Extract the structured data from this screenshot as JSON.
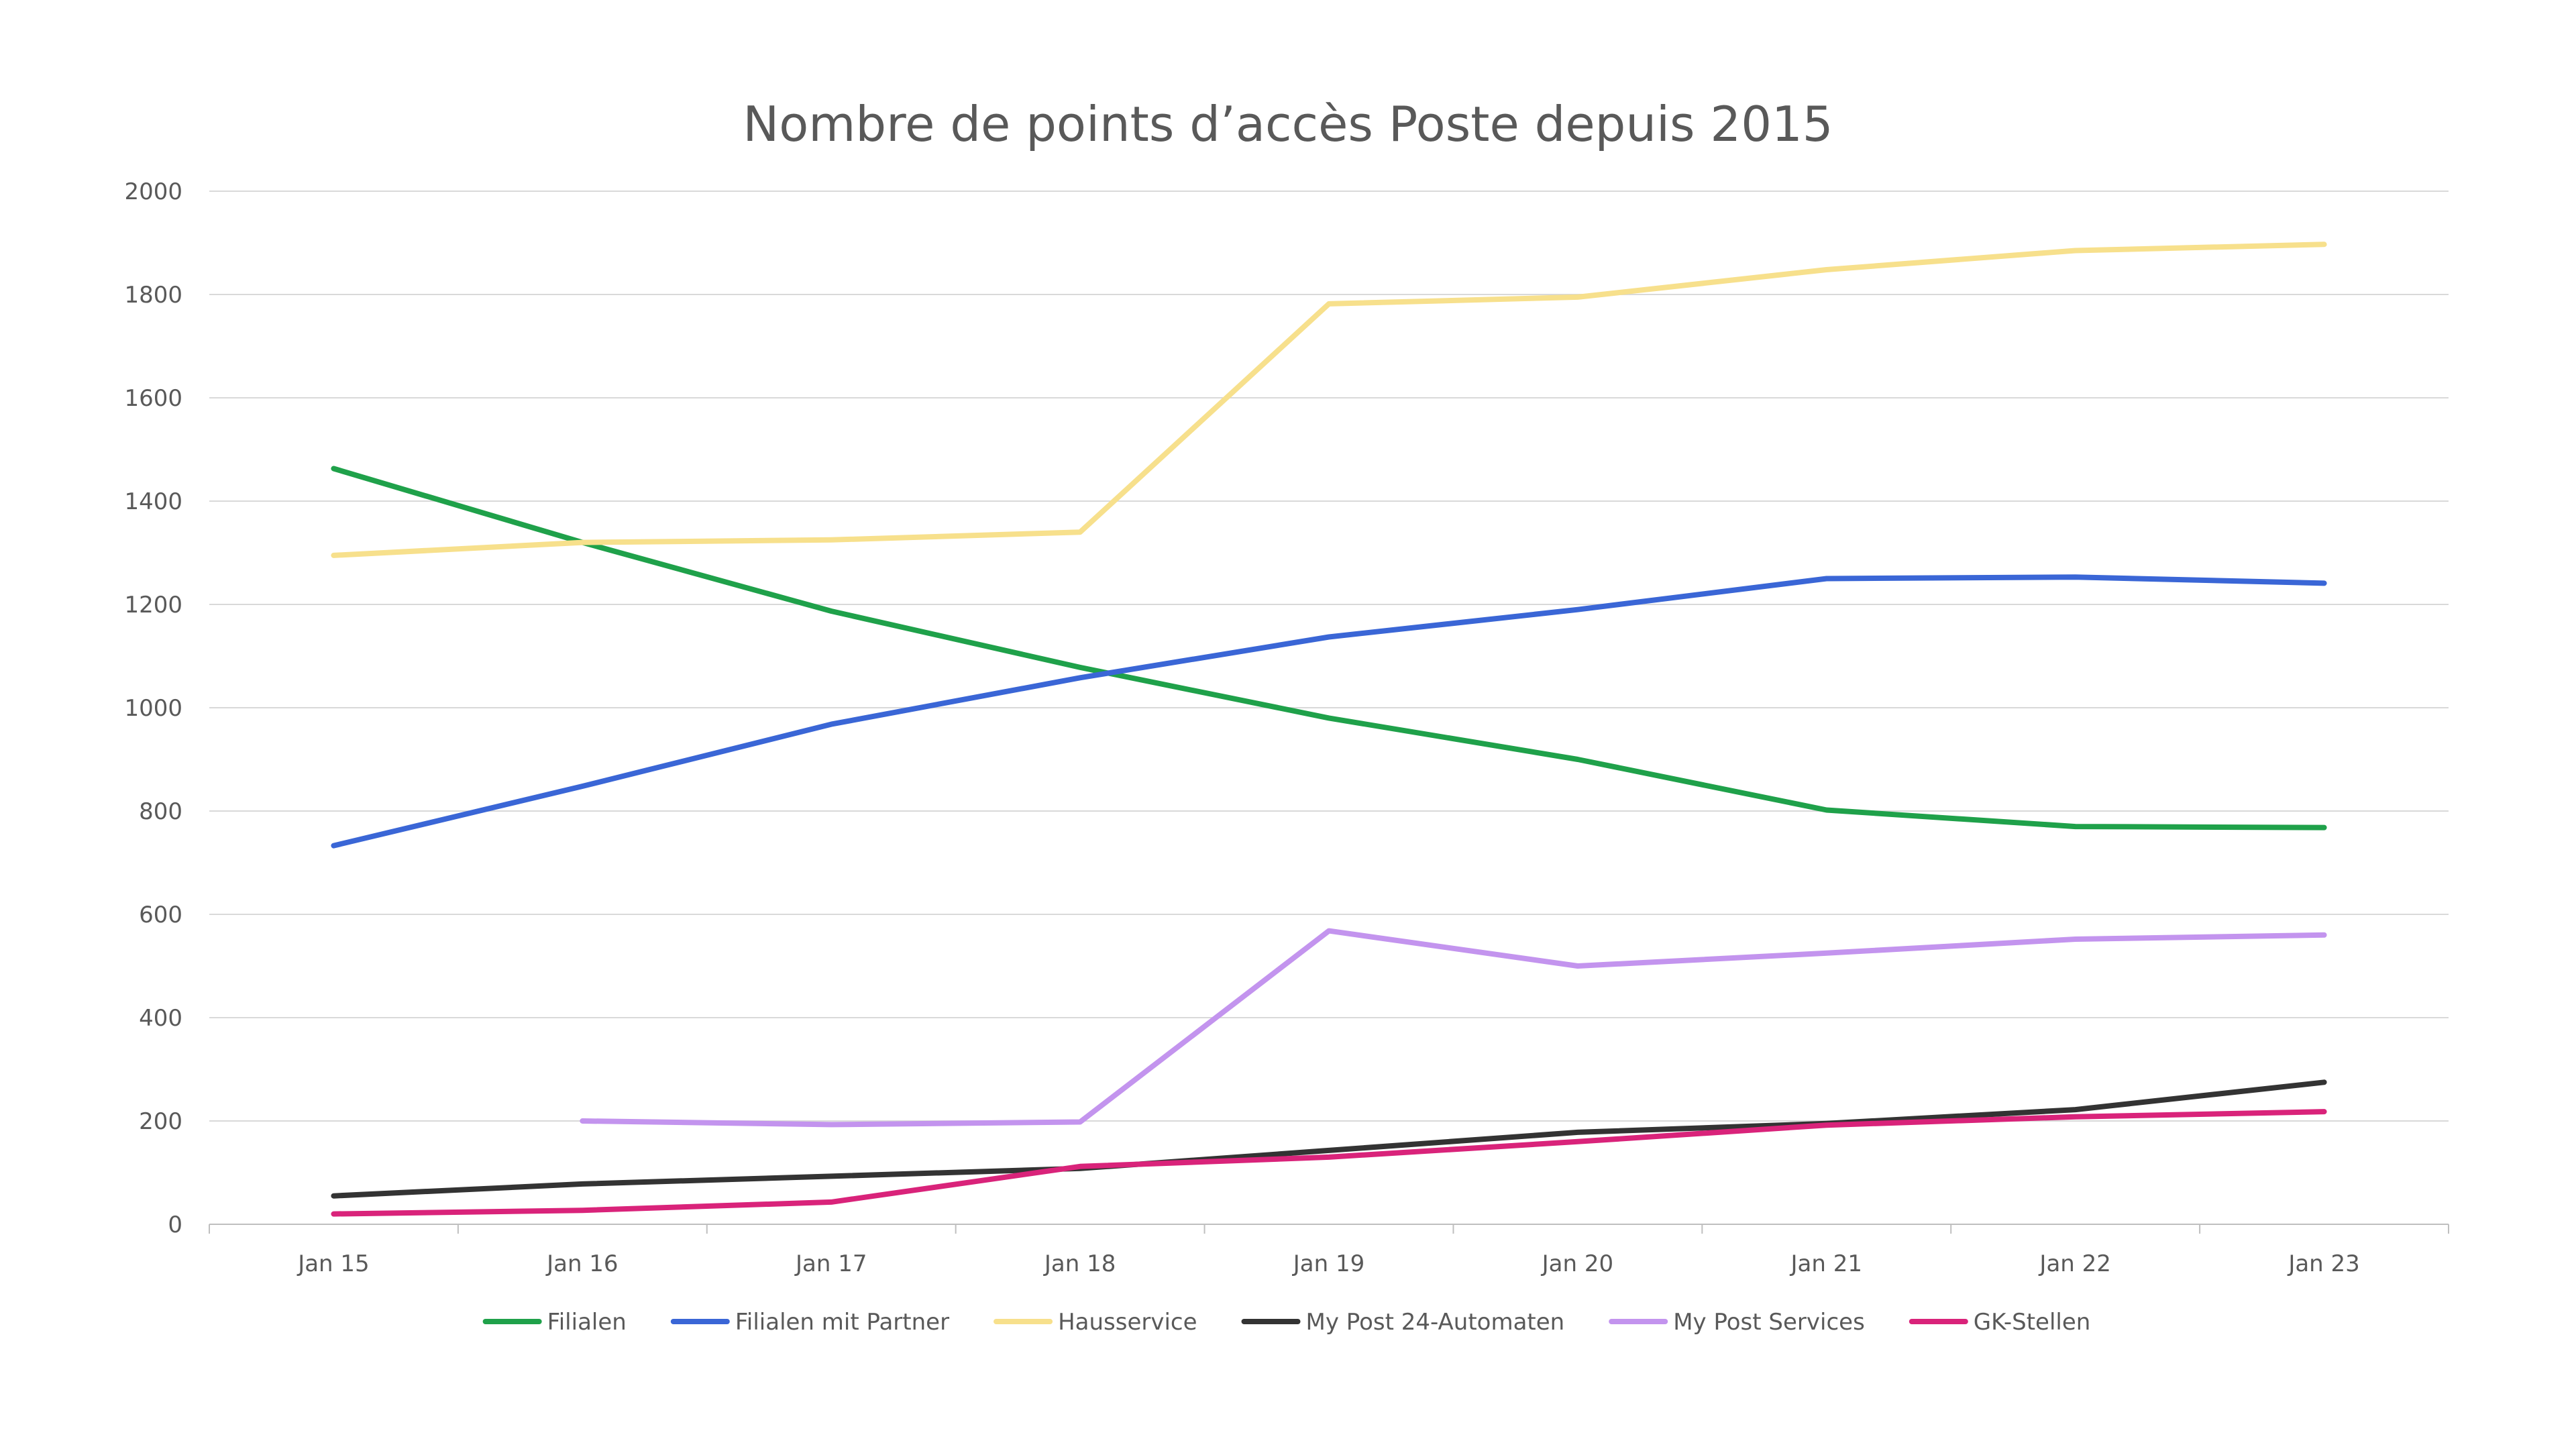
{
  "chart_data": {
    "type": "line",
    "title": "Nombre de points d’accès Poste depuis 2015",
    "categories": [
      "Jan 15",
      "Jan 16",
      "Jan 17",
      "Jan 18",
      "Jan 19",
      "Jan 20",
      "Jan 21",
      "Jan 22",
      "Jan 23"
    ],
    "y_ticks": [
      "0",
      "200",
      "400",
      "600",
      "800",
      "1000",
      "1200",
      "1400",
      "1600",
      "1800",
      "2000"
    ],
    "ylim": [
      0,
      2000
    ],
    "grid": true,
    "legend_position": "bottom",
    "series": [
      {
        "name": "Filialen",
        "color": "#1fa14a",
        "values": [
          1463,
          1320,
          1187,
          1078,
          980,
          900,
          802,
          770,
          768
        ]
      },
      {
        "name": "Filialen mit Partner",
        "color": "#3a66d6",
        "values": [
          733,
          848,
          968,
          1058,
          1137,
          1190,
          1250,
          1253,
          1241
        ]
      },
      {
        "name": "Hausservice",
        "color": "#f7e08c",
        "values": [
          1295,
          1320,
          1325,
          1340,
          1782,
          1795,
          1848,
          1885,
          1897
        ]
      },
      {
        "name": "My Post 24-Automaten",
        "color": "#333333",
        "values": [
          55,
          78,
          93,
          108,
          143,
          178,
          195,
          222,
          275
        ]
      },
      {
        "name": "My Post Services",
        "color": "#c394ee",
        "values": [
          null,
          200,
          193,
          198,
          568,
          500,
          525,
          552,
          560
        ]
      },
      {
        "name": "GK-Stellen",
        "color": "#d9237a",
        "values": [
          20,
          27,
          43,
          112,
          130,
          160,
          192,
          208,
          218
        ]
      }
    ]
  }
}
